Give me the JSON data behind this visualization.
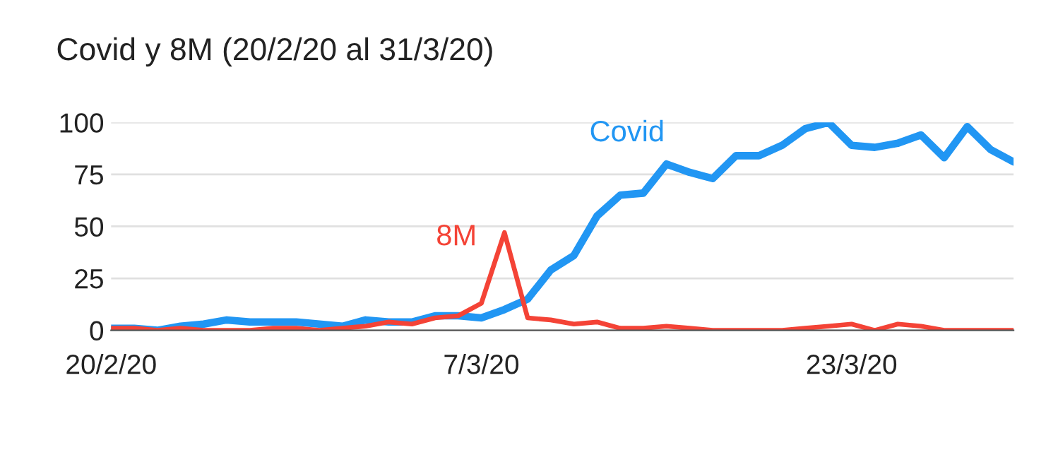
{
  "chart_data": {
    "type": "line",
    "title": "Covid y 8M (20/2/20 al 31/3/20)",
    "x": [
      "2020-02-20",
      "2020-02-21",
      "2020-02-22",
      "2020-02-23",
      "2020-02-24",
      "2020-02-25",
      "2020-02-26",
      "2020-02-27",
      "2020-02-28",
      "2020-02-29",
      "2020-03-01",
      "2020-03-02",
      "2020-03-03",
      "2020-03-04",
      "2020-03-05",
      "2020-03-06",
      "2020-03-07",
      "2020-03-08",
      "2020-03-09",
      "2020-03-10",
      "2020-03-11",
      "2020-03-12",
      "2020-03-13",
      "2020-03-14",
      "2020-03-15",
      "2020-03-16",
      "2020-03-17",
      "2020-03-18",
      "2020-03-19",
      "2020-03-20",
      "2020-03-21",
      "2020-03-22",
      "2020-03-23",
      "2020-03-24",
      "2020-03-25",
      "2020-03-26",
      "2020-03-27",
      "2020-03-28",
      "2020-03-29",
      "2020-03-30"
    ],
    "series": [
      {
        "name": "Covid",
        "color": "#2196f3",
        "values": [
          1,
          1,
          0,
          2,
          3,
          5,
          4,
          4,
          4,
          3,
          2,
          5,
          4,
          4,
          7,
          7,
          6,
          10,
          15,
          29,
          36,
          55,
          65,
          66,
          80,
          76,
          73,
          84,
          84,
          89,
          97,
          100,
          89,
          88,
          90,
          94,
          83,
          98,
          87,
          81
        ]
      },
      {
        "name": "8M",
        "color": "#f44336",
        "values": [
          1,
          1,
          0,
          1,
          0,
          0,
          0,
          1,
          1,
          0,
          1,
          2,
          4,
          3,
          6,
          7,
          13,
          47,
          6,
          5,
          3,
          4,
          1,
          1,
          2,
          1,
          0,
          0,
          0,
          0,
          1,
          2,
          3,
          0,
          3,
          2,
          0,
          0,
          0,
          0
        ]
      }
    ],
    "xlim": [
      "2020-02-20",
      "2020-03-30"
    ],
    "xticks": [
      {
        "value": "2020-02-20",
        "label": "20/2/20"
      },
      {
        "value": "2020-03-07",
        "label": "7/3/20"
      },
      {
        "value": "2020-03-23",
        "label": "23/3/20"
      }
    ],
    "ylim": [
      0,
      100
    ],
    "yticks": [
      0,
      25,
      50,
      75,
      100
    ],
    "grid": "y",
    "marker": "none",
    "line_style": "solid"
  }
}
